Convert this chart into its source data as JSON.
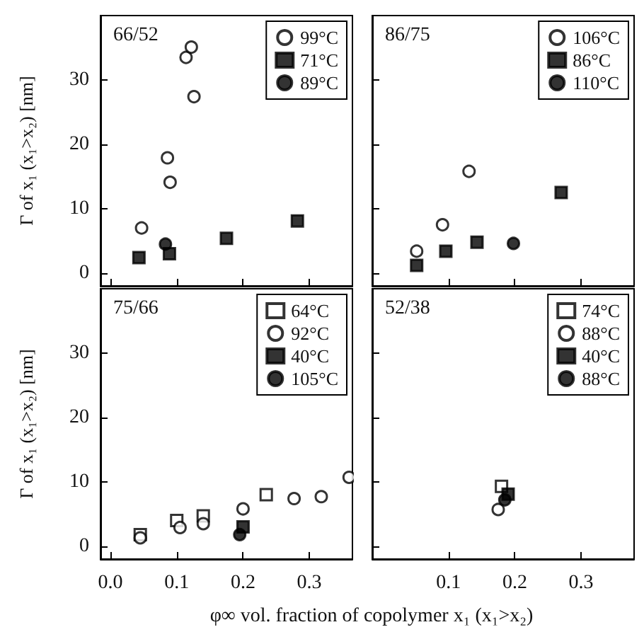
{
  "chart_data": [
    {
      "type": "scatter",
      "title": "66/52",
      "ylabel": "Γ of x₁ (x₁>x₂) [nm]",
      "xlim": [
        -0.015,
        0.365
      ],
      "ylim": [
        -2,
        40
      ],
      "xticks": [
        0,
        0.1,
        0.2,
        0.3
      ],
      "yticks": [
        0,
        10,
        20,
        30
      ],
      "tick_labels": "y",
      "legend": "top right",
      "grid": false,
      "series": [
        {
          "name": "99°C",
          "color": "#ffffff",
          "marker": "circle",
          "x": [
            0.047,
            0.086,
            0.09,
            0.114,
            0.122,
            0.126
          ],
          "values": [
            7.0,
            17.9,
            14.1,
            33.5,
            35.1,
            27.4
          ]
        },
        {
          "name": "71°C",
          "color": "#000000",
          "marker": "square",
          "x": [
            0.043,
            0.089,
            0.175,
            0.282
          ],
          "values": [
            2.4,
            3.0,
            5.4,
            8.1
          ]
        },
        {
          "name": "89°C",
          "color": "#000000",
          "marker": "circle",
          "x": [
            0.083
          ],
          "values": [
            4.5
          ]
        }
      ]
    },
    {
      "type": "scatter",
      "title": "86/75",
      "xlim": [
        -0.015,
        0.38
      ],
      "ylim": [
        -2,
        40
      ],
      "xticks": [
        0.1,
        0.2,
        0.3
      ],
      "yticks": [
        0,
        10,
        20,
        30
      ],
      "tick_labels": false,
      "legend": "top right",
      "grid": false,
      "series": [
        {
          "name": "106°C",
          "color": "#ffffff",
          "marker": "circle",
          "x": [
            0.052,
            0.091,
            0.131
          ],
          "values": [
            3.4,
            7.5,
            15.8
          ]
        },
        {
          "name": "86°C",
          "color": "#000000",
          "marker": "square",
          "x": [
            0.052,
            0.096,
            0.143,
            0.27
          ],
          "values": [
            1.2,
            3.4,
            4.8,
            12.5
          ]
        },
        {
          "name": "110°C",
          "color": "#000000",
          "marker": "circle",
          "x": [
            0.198
          ],
          "values": [
            4.6
          ]
        }
      ]
    },
    {
      "type": "scatter",
      "title": "75/66",
      "ylabel": "Γ of x₁ (x₁>x₂) [nm]",
      "xlabel": "φ∞ vol. fraction of copolymer x₁ (x₁>x₂)",
      "xlim": [
        -0.015,
        0.365
      ],
      "ylim": [
        -2,
        40
      ],
      "xticks": [
        {
          "value": 0,
          "label": "0.0"
        },
        0.1,
        0.2,
        0.3
      ],
      "yticks": [
        0,
        10,
        20,
        30
      ],
      "legend": "top right",
      "grid": false,
      "series": [
        {
          "name": "64°C",
          "color": "#ffffff",
          "marker": "square",
          "x": [
            0.045,
            0.1,
            0.14,
            0.235
          ],
          "values": [
            1.8,
            4.0,
            4.7,
            8.0
          ]
        },
        {
          "name": "92°C",
          "color": "#ffffff",
          "marker": "circle",
          "x": [
            0.045,
            0.105,
            0.14,
            0.2,
            0.277,
            0.318,
            0.36
          ],
          "values": [
            1.3,
            2.9,
            3.5,
            5.8,
            7.4,
            7.7,
            10.7
          ]
        },
        {
          "name": "40°C",
          "color": "#000000",
          "marker": "square",
          "x": [
            0.2
          ],
          "values": [
            3.0
          ]
        },
        {
          "name": "105°C",
          "color": "#000000",
          "marker": "circle",
          "x": [
            0.195
          ],
          "values": [
            1.8
          ]
        }
      ]
    },
    {
      "type": "scatter",
      "title": "52/38",
      "xlim": [
        -0.015,
        0.38
      ],
      "ylim": [
        -2,
        40
      ],
      "xticks": [
        0.1,
        0.2,
        0.3
      ],
      "yticks": [
        0,
        10,
        20,
        30
      ],
      "tick_labels": "x",
      "legend": "top right",
      "grid": false,
      "series": [
        {
          "name": "74°C",
          "color": "#ffffff",
          "marker": "square",
          "x": [
            0.18
          ],
          "values": [
            9.3
          ]
        },
        {
          "name": "88°C",
          "color": "#ffffff",
          "marker": "circle",
          "x": [
            0.175
          ],
          "values": [
            5.7
          ]
        },
        {
          "name": "40°C",
          "color": "#000000",
          "marker": "square",
          "x": [
            0.19
          ],
          "values": [
            8.1
          ]
        },
        {
          "name": "88°C",
          "color": "#000000",
          "marker": "circle",
          "x": [
            0.185
          ],
          "values": [
            7.2
          ]
        }
      ]
    }
  ]
}
